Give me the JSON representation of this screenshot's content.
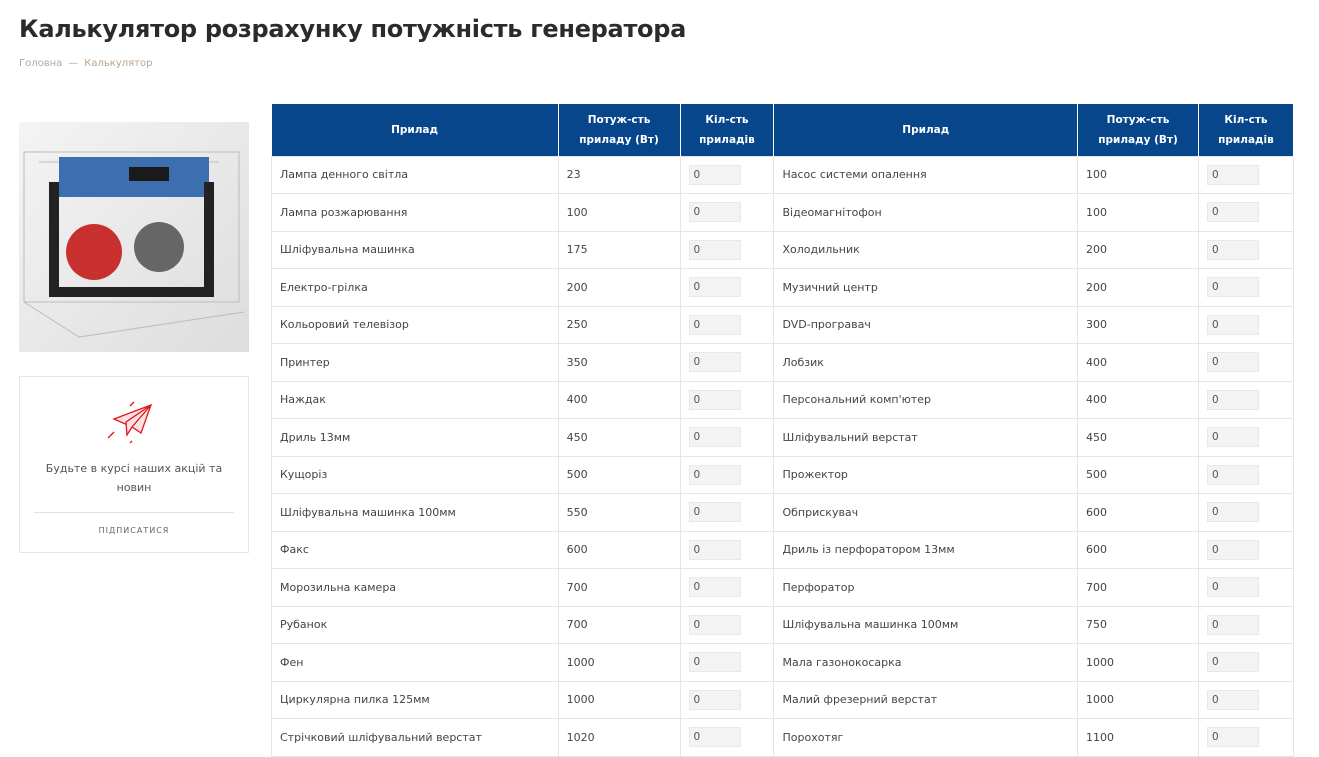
{
  "title": "Калькулятор розрахунку потужність генератора",
  "breadcrumb": [
    "Головна",
    "—",
    "Калькулятор"
  ],
  "newsletter": {
    "text": "Будьте в курсі наших акцій та новин",
    "button": "підписатися"
  },
  "table": {
    "headers": [
      "Прилад",
      "Потуж-сть приладу (Вт)",
      "Кіл-сть приладів",
      "Прилад",
      "Потуж-сть приладу (Вт)",
      "Кіл-сть приладів"
    ],
    "rows": [
      [
        "Лампа денного світла",
        "23",
        "0",
        "Насос системи опалення",
        "100",
        "0"
      ],
      [
        "Лампа розжарювання",
        "100",
        "0",
        "Відеомагнітофон",
        "100",
        "0"
      ],
      [
        "Шліфувальна машинка",
        "175",
        "0",
        "Холодильник",
        "200",
        "0"
      ],
      [
        "Електро-грілка",
        "200",
        "0",
        "Музичний центр",
        "200",
        "0"
      ],
      [
        "Кольоровий телевізор",
        "250",
        "0",
        "DVD-програвач",
        "300",
        "0"
      ],
      [
        "Принтер",
        "350",
        "0",
        "Лобзик",
        "400",
        "0"
      ],
      [
        "Наждак",
        "400",
        "0",
        "Персональний комп'ютер",
        "400",
        "0"
      ],
      [
        "Дриль 13мм",
        "450",
        "0",
        "Шліфувальний верстат",
        "450",
        "0"
      ],
      [
        "Кущоріз",
        "500",
        "0",
        "Прожектор",
        "500",
        "0"
      ],
      [
        "Шліфувальна машинка 100мм",
        "550",
        "0",
        "Обприскувач",
        "600",
        "0"
      ],
      [
        "Факс",
        "600",
        "0",
        "Дриль із перфоратором 13мм",
        "600",
        "0"
      ],
      [
        "Морозильна камера",
        "700",
        "0",
        "Перфоратор",
        "700",
        "0"
      ],
      [
        "Рубанок",
        "700",
        "0",
        "Шліфувальна машинка 100мм",
        "750",
        "0"
      ],
      [
        "Фен",
        "1000",
        "0",
        "Мала газонокосарка",
        "1000",
        "0"
      ],
      [
        "Циркулярна пилка 125мм",
        "1000",
        "0",
        "Малий фрезерний верстат",
        "1000",
        "0"
      ],
      [
        "Стрічковий шліфувальний верстат",
        "1020",
        "0",
        "Порохотяг",
        "1100",
        "0"
      ]
    ]
  }
}
